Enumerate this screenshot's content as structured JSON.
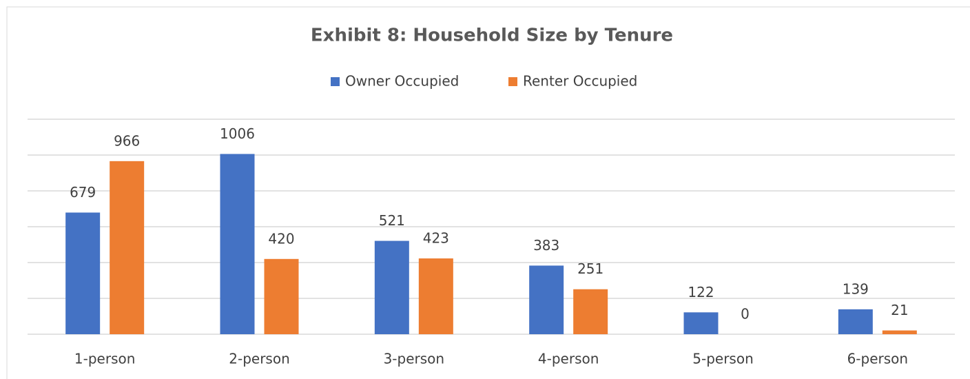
{
  "chart_data": {
    "type": "bar",
    "title": "Exhibit 8: Household Size by Tenure",
    "categories": [
      "1-person",
      "2-person",
      "3-person",
      "4-person",
      "5-person",
      "6-person"
    ],
    "series": [
      {
        "name": "Owner Occupied",
        "color": "#4472c4",
        "values": [
          679,
          1006,
          521,
          383,
          122,
          139
        ]
      },
      {
        "name": "Renter Occupied",
        "color": "#ed7d31",
        "values": [
          966,
          420,
          423,
          251,
          0,
          21
        ]
      }
    ],
    "ylim": [
      0,
      1200
    ],
    "yticks": [
      0,
      200,
      400,
      600,
      800,
      1000,
      1200
    ],
    "grid": true,
    "legend": "top"
  }
}
